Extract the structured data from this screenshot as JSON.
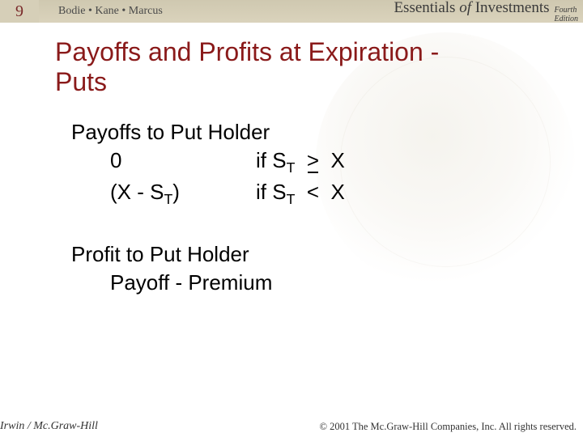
{
  "header": {
    "slide_number": "9",
    "authors": "Bodie • Kane • Marcus",
    "book_title_pre": "Essentials ",
    "book_title_of": "of",
    "book_title_post": " Investments",
    "edition_line1": "Fourth",
    "edition_line2": "Edition"
  },
  "title": {
    "line1": "Payoffs and Profits at Expiration -",
    "line2": "Puts"
  },
  "content": {
    "section1_heading": "Payoffs to Put Holder",
    "row1_left": "0",
    "row1_if": "if  S",
    "row1_sub": "T",
    "row1_op": ">",
    "row1_rhs": "X",
    "row2_left_pre": "(X - S",
    "row2_left_sub": "T",
    "row2_left_post": ")",
    "row2_if": "if  S",
    "row2_sub": "T",
    "row2_op": "<",
    "row2_rhs": "X",
    "section2_heading": "Profit to Put Holder",
    "section2_line": "Payoff - Premium"
  },
  "footer": {
    "left": "Irwin / Mc.Graw-Hill",
    "right": "© 2001 The Mc.Graw-Hill Companies, Inc. All rights reserved."
  },
  "colors": {
    "header_bg": "#d6cfb8",
    "title_color": "#8a1a1a",
    "text_color": "#000000",
    "background": "#ffffff"
  }
}
